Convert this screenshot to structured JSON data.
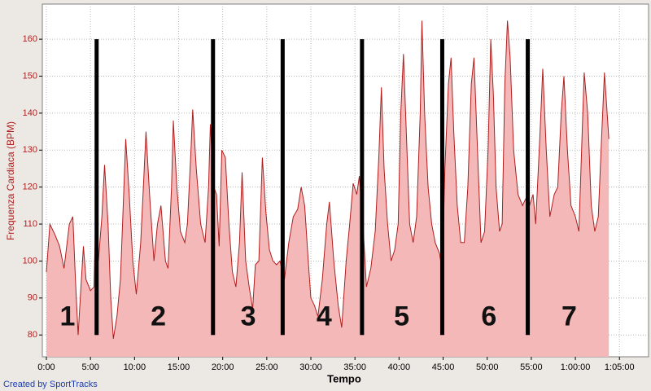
{
  "chart_data": {
    "type": "area",
    "y_label": "Frequenza Cardiaca (BPM)",
    "x_label": "Tempo",
    "footer": "Created by SportTracks",
    "x": [
      0,
      0.4,
      1,
      1.5,
      2,
      2.6,
      3.0,
      3.3,
      3.6,
      3.9,
      4.2,
      4.5,
      5,
      5.4,
      5.6,
      5.9,
      6.3,
      6.6,
      7,
      7.3,
      7.6,
      8,
      8.4,
      8.8,
      9,
      9.4,
      9.8,
      10.2,
      10.7,
      11,
      11.3,
      11.7,
      12.2,
      12.6,
      13,
      13.5,
      13.8,
      14.2,
      14.4,
      14.8,
      15.2,
      15.7,
      16,
      16.4,
      16.6,
      17,
      17.5,
      18,
      18.4,
      18.6,
      19,
      19.3,
      19.6,
      19.9,
      20.3,
      20.7,
      21.1,
      21.5,
      21.9,
      22.2,
      22.6,
      23,
      23.4,
      23.7,
      24.1,
      24.5,
      24.9,
      25.3,
      25.7,
      26.1,
      26.5,
      27,
      27.5,
      28,
      28.5,
      28.9,
      29.3,
      29.7,
      30,
      30.4,
      30.8,
      31.3,
      31.8,
      32.1,
      32.6,
      33.1,
      33.5,
      34,
      34.4,
      34.8,
      35.2,
      35.5,
      35.9,
      36.3,
      36.8,
      37.3,
      37.7,
      38,
      38.3,
      38.7,
      39.1,
      39.5,
      39.9,
      40.2,
      40.5,
      40.9,
      41.2,
      41.6,
      42,
      42.4,
      42.6,
      42.9,
      43.3,
      43.7,
      44.1,
      44.6,
      44.9,
      45.2,
      45.6,
      45.9,
      46.2,
      46.6,
      47,
      47.4,
      47.8,
      48.2,
      48.5,
      48.9,
      49.3,
      49.7,
      50.1,
      50.4,
      50.7,
      51,
      51.4,
      51.7,
      52,
      52.3,
      52.6,
      53,
      53.5,
      54,
      54.4,
      54.8,
      55.2,
      55.5,
      56,
      56.3,
      56.7,
      57.1,
      57.6,
      58,
      58.4,
      58.7,
      59.1,
      59.5,
      60,
      60.4,
      60.7,
      61,
      61.4,
      61.8,
      62.2,
      62.6,
      63,
      63.3,
      63.6,
      63.8
    ],
    "series": [
      {
        "color": "#b01e1e",
        "fill": "#f4b8b8",
        "values": [
          97,
          110,
          107,
          104,
          98,
          110,
          112,
          95,
          80,
          92,
          104,
          95,
          92,
          93,
          113,
          100,
          112,
          126,
          110,
          90,
          79,
          85,
          95,
          120,
          133,
          118,
          100,
          91,
          105,
          120,
          135,
          118,
          100,
          110,
          115,
          100,
          98,
          120,
          138,
          120,
          108,
          105,
          110,
          130,
          141,
          125,
          110,
          105,
          120,
          137,
          120,
          118,
          104,
          130,
          128,
          110,
          97,
          93,
          105,
          124,
          100,
          93,
          87,
          99,
          100,
          128,
          113,
          103,
          100,
          99,
          100,
          95,
          105,
          112,
          114,
          120,
          115,
          100,
          90,
          88,
          85,
          95,
          110,
          116,
          100,
          88,
          82,
          100,
          110,
          121,
          118,
          123,
          110,
          93,
          98,
          108,
          128,
          147,
          125,
          110,
          100,
          103,
          110,
          140,
          156,
          130,
          110,
          105,
          112,
          140,
          165,
          140,
          120,
          110,
          105,
          102,
          97,
          125,
          148,
          155,
          135,
          115,
          105,
          105,
          120,
          148,
          155,
          130,
          105,
          108,
          130,
          160,
          145,
          120,
          108,
          110,
          148,
          165,
          155,
          130,
          118,
          115,
          117,
          115,
          118,
          110,
          135,
          152,
          130,
          112,
          118,
          120,
          140,
          150,
          130,
          115,
          112,
          108,
          130,
          151,
          140,
          115,
          108,
          112,
          135,
          151,
          140,
          133
        ]
      }
    ],
    "xlim": [
      -0.46,
      68.3
    ],
    "ylim": [
      74.1,
      169.5
    ],
    "xticks": [
      {
        "value": 0,
        "label": "0:00"
      },
      {
        "value": 5,
        "label": "5:00"
      },
      {
        "value": 10,
        "label": "10:00"
      },
      {
        "value": 15,
        "label": "15:00"
      },
      {
        "value": 20,
        "label": "20:00"
      },
      {
        "value": 25,
        "label": "25:00"
      },
      {
        "value": 30,
        "label": "30:00"
      },
      {
        "value": 35,
        "label": "35:00"
      },
      {
        "value": 40,
        "label": "40:00"
      },
      {
        "value": 45,
        "label": "45:00"
      },
      {
        "value": 50,
        "label": "50:00"
      },
      {
        "value": 55,
        "label": "55:00"
      },
      {
        "value": 60,
        "label": "1:00:00"
      },
      {
        "value": 65,
        "label": "1:05:00"
      }
    ],
    "yticks": [
      80,
      90,
      100,
      110,
      120,
      130,
      140,
      150,
      160
    ],
    "grid": true,
    "vlines": [
      5.7,
      18.9,
      26.8,
      35.8,
      44.9,
      54.6
    ],
    "vline_range": [
      80,
      160
    ],
    "segment_labels": [
      {
        "label": "1",
        "x": 2.4,
        "y": 84.6
      },
      {
        "label": "2",
        "x": 12.7,
        "y": 84.6
      },
      {
        "label": "3",
        "x": 22.9,
        "y": 84.6
      },
      {
        "label": "4",
        "x": 31.5,
        "y": 84.6
      },
      {
        "label": "5",
        "x": 40.3,
        "y": 84.6
      },
      {
        "label": "6",
        "x": 50.2,
        "y": 84.6
      },
      {
        "label": "7",
        "x": 59.3,
        "y": 84.6
      }
    ]
  }
}
